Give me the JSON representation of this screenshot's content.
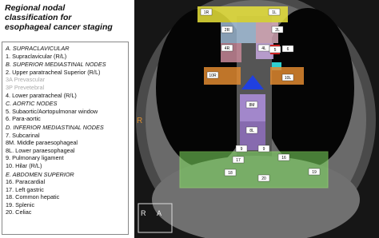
{
  "title": [
    "Regional nodal",
    "classification for",
    "esophageal cancer staging"
  ],
  "legend": {
    "sections": [
      {
        "heading": "A.   SUPRACLAVICULAR",
        "items": [
          "1.   Supraclavicular (R/L)"
        ]
      },
      {
        "heading": "B.   SUPERIOR MEDIASTINAL NODES",
        "items": [
          "2. Upper paratracheal Superior (R/L)",
          "3A Prevascular",
          "3P Prevetebral",
          "4. Lower paratracheal (R/L)"
        ]
      },
      {
        "heading": "C.    AORTIC NODES",
        "items": [
          "5. Subaortic/Aortopulmonar  window",
          "6. Para-aortic"
        ]
      },
      {
        "heading": "D.    INFERIOR MEDIASTINAL NODES",
        "items": [
          "7. Subcarinal",
          "8M. Middle paraesophageal",
          "8L. Lower paraesophageal",
          "9. Pulmonary ligament",
          "10. Hilar (R/L)"
        ]
      },
      {
        "heading": "E.    ABDOMEN SUPERIOR",
        "items": [
          "16.   Paracardial",
          "17.   Left gastric",
          "18.   Common hepatic",
          "19.   Splenic",
          "20.   Celiac"
        ]
      }
    ]
  },
  "image": {
    "labels": [
      "1R",
      "1L",
      "2R",
      "2L",
      "4R",
      "4L",
      "5",
      "6",
      "10R",
      "10L",
      "8M",
      "8L",
      "9",
      "9",
      "17",
      "16",
      "18",
      "19",
      "20"
    ],
    "side_marker": "R",
    "orientation": [
      "R",
      "A"
    ]
  }
}
